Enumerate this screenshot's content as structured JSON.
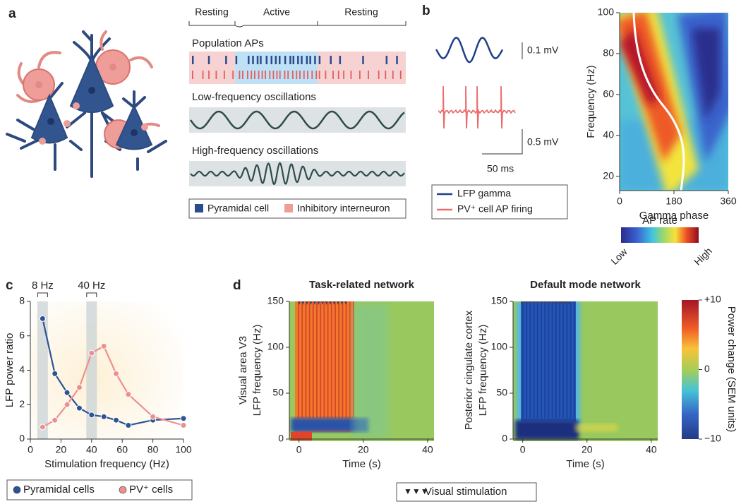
{
  "figure": {
    "panel_labels": [
      "a",
      "b",
      "c",
      "d"
    ],
    "a": {
      "phases": [
        "Resting",
        "Active",
        "Resting"
      ],
      "rows": [
        "Population APs",
        "Low-frequency oscillations",
        "High-frequency oscillations"
      ],
      "legend": [
        "Pyramidal cell",
        "Inhibitory interneuron"
      ]
    },
    "b": {
      "scales": [
        "0.1 mV",
        "0.5 mV",
        "50 ms"
      ],
      "legend": [
        "LFP gamma",
        "PV⁺ cell AP firing"
      ]
    },
    "d": {
      "colorbar": {
        "label": "Power change (SEM units)",
        "lim": [
          -10,
          10
        ],
        "ticks": [
          {
            "value": 10,
            "label": "+10"
          },
          0,
          {
            "value": -10,
            "label": "−10"
          }
        ]
      },
      "legend": "Visual stimulation"
    }
  },
  "chart_data": [
    {
      "type": "line",
      "xlabel": "Stimulation frequency (Hz)",
      "ylabel": "LFP power ratio",
      "x": [
        8,
        16,
        24,
        32,
        40,
        48,
        56,
        64,
        80,
        100
      ],
      "series": [
        {
          "name": "Pyramidal cells",
          "color": "#2c5494",
          "values": [
            7.0,
            3.8,
            2.7,
            1.8,
            1.4,
            1.3,
            1.1,
            0.8,
            1.1,
            1.2
          ]
        },
        {
          "name": "PV⁺ cells",
          "color": "#ee8f8f",
          "values": [
            0.7,
            1.1,
            2.0,
            3.0,
            5.0,
            5.4,
            3.8,
            2.6,
            1.3,
            0.8
          ]
        }
      ],
      "bands": [
        {
          "x": 8,
          "label": "8 Hz"
        },
        {
          "x": 40,
          "label": "40 Hz"
        }
      ],
      "xlim": [
        0,
        100
      ],
      "xticks": [
        0,
        20,
        40,
        60,
        80,
        100
      ],
      "ylim": [
        0,
        8
      ],
      "yticks": [
        0,
        2,
        4,
        6,
        8
      ],
      "legend": "bottom"
    },
    {
      "type": "heatmap",
      "xlabel": "Gamma phase",
      "ylabel": [
        "Frequency (Hz)"
      ],
      "xlim": [
        0,
        360
      ],
      "xticks": [
        0,
        180,
        360
      ],
      "ylim": [
        13,
        100
      ],
      "yticks": [
        20,
        40,
        60,
        80,
        100
      ],
      "colorbar": {
        "label": "AP rate",
        "low": "Low",
        "high": "High"
      }
    },
    {
      "type": "heatmap",
      "title": "Task-related network",
      "xlabel": "Time (s)",
      "ylabel": [
        "Visual area V3",
        "LFP frequency (Hz)"
      ],
      "xlim": [
        -3,
        42
      ],
      "xticks": [
        0,
        20,
        40
      ],
      "ylim": [
        0,
        150
      ],
      "yticks": [
        0,
        50,
        100,
        150
      ]
    },
    {
      "type": "heatmap",
      "title": "Default mode network",
      "xlabel": "Time (s)",
      "ylabel": [
        "Posterior cingulate cortex",
        "LFP frequency (Hz)"
      ],
      "xlim": [
        -3,
        42
      ],
      "xticks": [
        0,
        20,
        40
      ],
      "ylim": [
        0,
        150
      ],
      "yticks": [
        0,
        50,
        100,
        150
      ]
    }
  ]
}
